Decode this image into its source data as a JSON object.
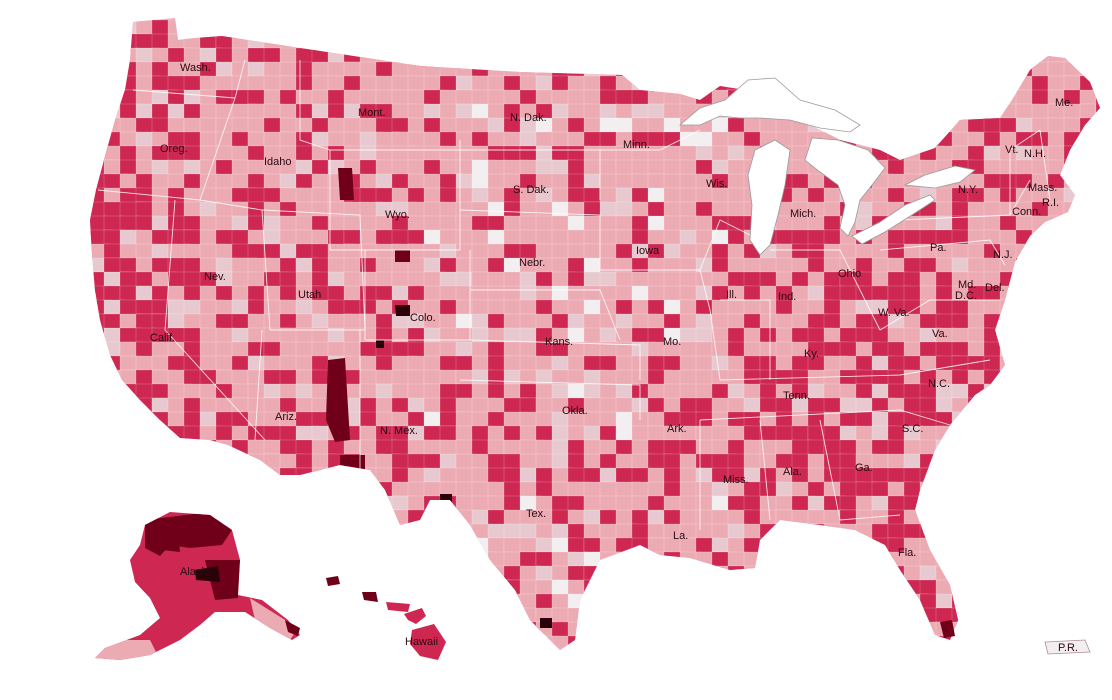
{
  "palette": {
    "very_low": "#f3eef0",
    "low": "#e7c9cf",
    "medium": "#ecaab3",
    "high": "#cd2752",
    "very_high": "#700019",
    "extreme": "#2b0008",
    "lake": "#ffffff",
    "outline": "#9a9a9a"
  },
  "states": [
    {
      "abbr": "Wash."
    },
    {
      "abbr": "Oreg."
    },
    {
      "abbr": "Calif."
    },
    {
      "abbr": "Idaho"
    },
    {
      "abbr": "Nev."
    },
    {
      "abbr": "Utah"
    },
    {
      "abbr": "Ariz."
    },
    {
      "abbr": "Mont."
    },
    {
      "abbr": "Wyo."
    },
    {
      "abbr": "Colo."
    },
    {
      "abbr": "N. Mex."
    },
    {
      "abbr": "N. Dak."
    },
    {
      "abbr": "S. Dak."
    },
    {
      "abbr": "Nebr."
    },
    {
      "abbr": "Kans."
    },
    {
      "abbr": "Okla."
    },
    {
      "abbr": "Tex."
    },
    {
      "abbr": "Minn."
    },
    {
      "abbr": "Iowa"
    },
    {
      "abbr": "Mo."
    },
    {
      "abbr": "Ark."
    },
    {
      "abbr": "La."
    },
    {
      "abbr": "Wis."
    },
    {
      "abbr": "Ill."
    },
    {
      "abbr": "Mich."
    },
    {
      "abbr": "Ind."
    },
    {
      "abbr": "Ohio"
    },
    {
      "abbr": "Ky."
    },
    {
      "abbr": "Tenn."
    },
    {
      "abbr": "Miss."
    },
    {
      "abbr": "Ala."
    },
    {
      "abbr": "Ga."
    },
    {
      "abbr": "Fla."
    },
    {
      "abbr": "S.C."
    },
    {
      "abbr": "N.C."
    },
    {
      "abbr": "Va."
    },
    {
      "abbr": "W. Va."
    },
    {
      "abbr": "Pa."
    },
    {
      "abbr": "N.Y."
    },
    {
      "abbr": "Vt."
    },
    {
      "abbr": "N.H."
    },
    {
      "abbr": "Me."
    },
    {
      "abbr": "Mass."
    },
    {
      "abbr": "Conn."
    },
    {
      "abbr": "R.I."
    },
    {
      "abbr": "N.J."
    },
    {
      "abbr": "Del."
    },
    {
      "abbr": "Md."
    },
    {
      "abbr": "D.C."
    },
    {
      "abbr": "Alaska"
    },
    {
      "abbr": "Hawaii"
    },
    {
      "abbr": "P.R."
    }
  ]
}
